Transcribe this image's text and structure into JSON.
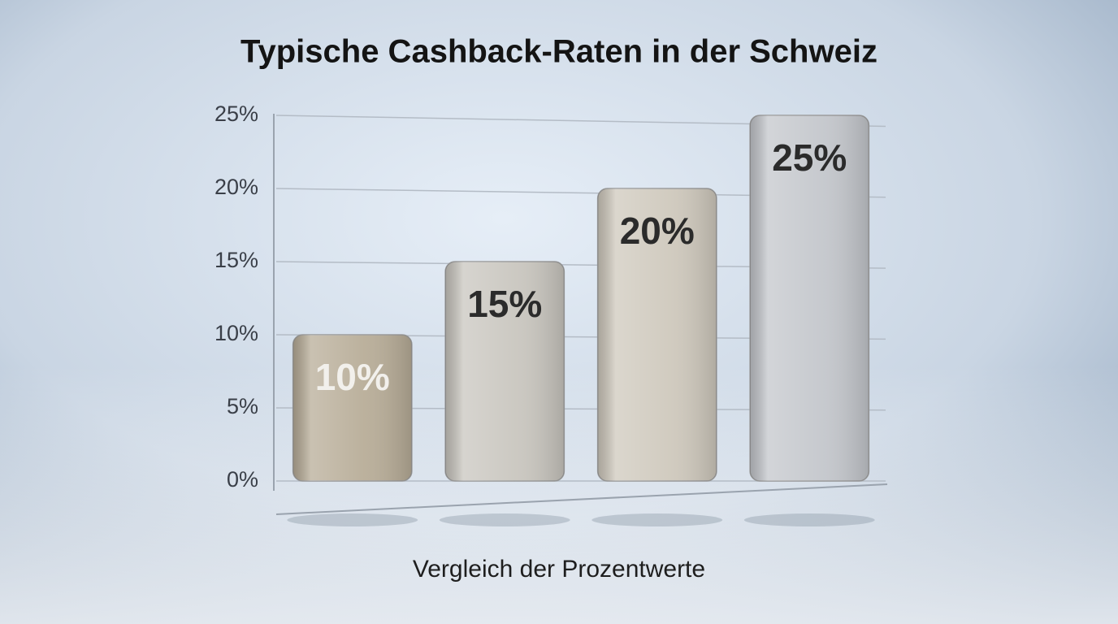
{
  "chart_data": {
    "type": "bar",
    "title": "Typische Cashback-Raten in der Schweiz",
    "x_label": "Vergleich der Prozentwerte",
    "categories": [
      null,
      null,
      null,
      null
    ],
    "values": [
      10,
      15,
      20,
      25
    ],
    "value_labels": [
      "10%",
      "15%",
      "20%",
      "25%"
    ],
    "colors": [
      "#b8ad98",
      "#c9c6bf",
      "#cfc9bd",
      "#c4c7cc"
    ],
    "value_label_colors": [
      "#f2f0ec",
      "#2b2b2b",
      "#2b2b2b",
      "#2b2b2b"
    ],
    "ylim": [
      0,
      25
    ],
    "yticks": [
      {
        "value": 0,
        "label": "0%"
      },
      {
        "value": 5,
        "label": "5%"
      },
      {
        "value": 10,
        "label": "10%"
      },
      {
        "value": 15,
        "label": "15%"
      },
      {
        "value": 20,
        "label": "20%"
      },
      {
        "value": 25,
        "label": "25%"
      }
    ],
    "grid": true
  }
}
